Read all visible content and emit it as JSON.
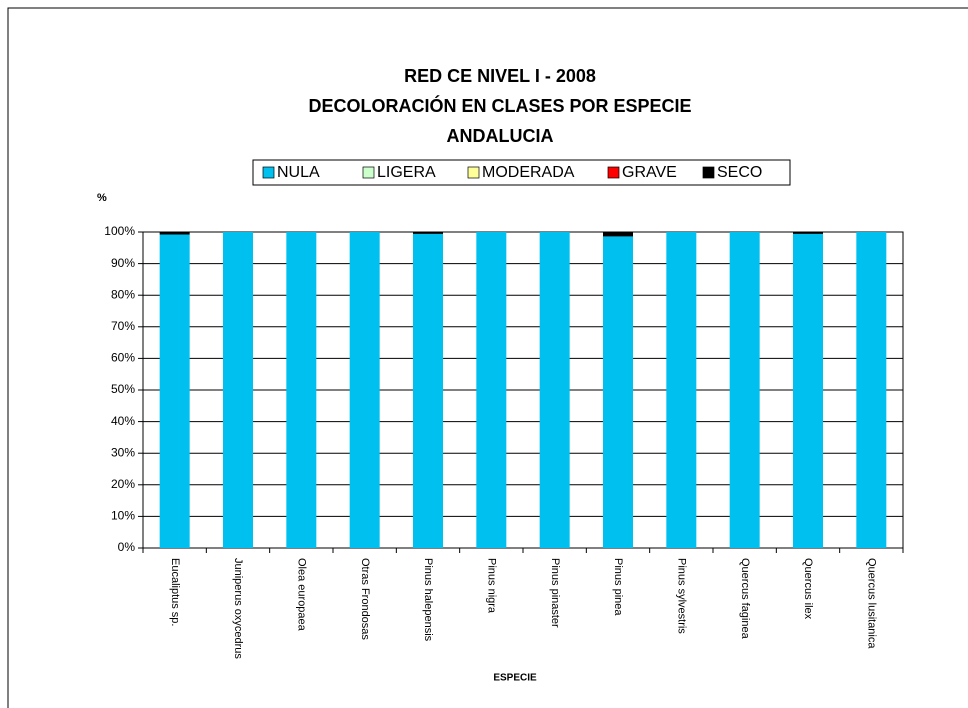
{
  "chart_data": {
    "type": "stacked_bar",
    "title": [
      "RED CE NIVEL I - 2008",
      "DECOLORACIÓN EN CLASES POR ESPECIE",
      "ANDALUCIA"
    ],
    "y_label": "%",
    "x_label": "ESPECIE",
    "categories": [
      "Eucaliptus sp.",
      "Juniperus oxycedrus",
      "Olea europaea",
      "Otras Frondosas",
      "Pinus halepensis",
      "Pinus nigra",
      "Pinus pinaster",
      "Pinus pinea",
      "Pinus sylvestris",
      "Quercus faginea",
      "Quercus ilex",
      "Quercus lusitanica"
    ],
    "series": [
      {
        "name": "NULA",
        "color": "#00c0f0",
        "values": [
          99.2,
          100,
          100,
          100,
          99.4,
          100,
          100,
          98.6,
          100,
          100,
          99.4,
          100
        ]
      },
      {
        "name": "LIGERA",
        "color": "#ccffcc",
        "values": [
          0,
          0,
          0,
          0,
          0,
          0,
          0,
          0,
          0,
          0,
          0,
          0
        ]
      },
      {
        "name": "MODERADA",
        "color": "#ffff99",
        "values": [
          0,
          0,
          0,
          0,
          0,
          0,
          0,
          0,
          0,
          0,
          0,
          0
        ]
      },
      {
        "name": "GRAVE",
        "color": "#ff0000",
        "values": [
          0,
          0,
          0,
          0,
          0,
          0,
          0,
          0,
          0,
          0,
          0,
          0
        ]
      },
      {
        "name": "SECO",
        "color": "#000000",
        "values": [
          0.8,
          0,
          0,
          0,
          0.6,
          0,
          0,
          1.4,
          0,
          0,
          0.6,
          0
        ]
      }
    ],
    "ylim": [
      0,
      100
    ],
    "yticks": [
      {
        "value": 0,
        "label": "0%"
      },
      {
        "value": 10,
        "label": "10%"
      },
      {
        "value": 20,
        "label": "20%"
      },
      {
        "value": 30,
        "label": "30%"
      },
      {
        "value": 40,
        "label": "40%"
      },
      {
        "value": 50,
        "label": "50%"
      },
      {
        "value": 60,
        "label": "60%"
      },
      {
        "value": 70,
        "label": "70%"
      },
      {
        "value": 80,
        "label": "80%"
      },
      {
        "value": 90,
        "label": "90%"
      },
      {
        "value": 100,
        "label": "100%"
      }
    ],
    "grid": true,
    "legend": "top"
  }
}
